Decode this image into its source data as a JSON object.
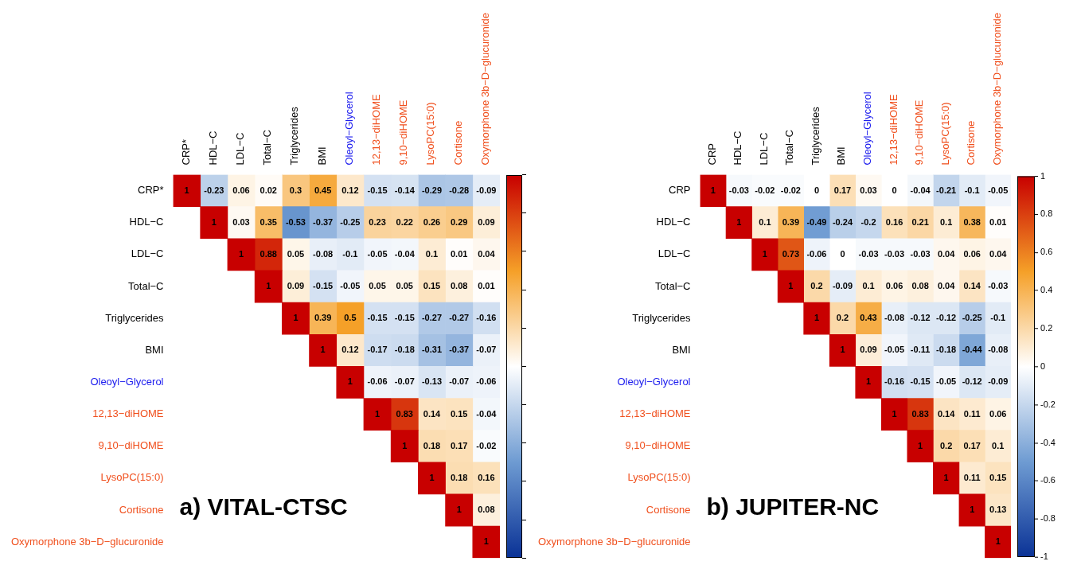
{
  "chart_data": [
    {
      "type": "heatmap",
      "title": "a) VITAL-CTSC",
      "categories": [
        "CRP*",
        "HDL−C",
        "LDL−C",
        "Total−C",
        "Triglycerides",
        "BMI",
        "Oleoyl−Glycerol",
        "12,13−diHOME",
        "9,10−diHOME",
        "LysoPC(15:0)",
        "Cortisone",
        "Oxymorphone 3b−D−glucuronide"
      ],
      "y_categories": [
        "CRP*",
        "HDL−C",
        "LDL−C",
        "Total−C",
        "Triglycerides",
        "BMI",
        "Oleoyl−Glycerol",
        "12,13−diHOME",
        "9,10−diHOME",
        "LysoPC(15:0)",
        "Cortisone",
        "Oxymorphone 3b−D−glucuronide"
      ],
      "cells": [
        [
          1,
          -0.23,
          0.06,
          0.02,
          0.3,
          0.45,
          0.12,
          -0.15,
          -0.14,
          -0.29,
          -0.28,
          -0.09
        ],
        [
          null,
          1,
          0.03,
          0.35,
          -0.53,
          -0.37,
          -0.25,
          0.23,
          0.22,
          0.26,
          0.29,
          0.09
        ],
        [
          null,
          null,
          1,
          0.88,
          0.05,
          -0.08,
          -0.1,
          -0.05,
          -0.04,
          0.1,
          0.01,
          0.04
        ],
        [
          null,
          null,
          null,
          1,
          0.09,
          -0.15,
          -0.05,
          0.05,
          0.05,
          0.15,
          0.08,
          0.01
        ],
        [
          null,
          null,
          null,
          null,
          1,
          0.39,
          0.5,
          -0.15,
          -0.15,
          -0.27,
          -0.27,
          -0.16
        ],
        [
          null,
          null,
          null,
          null,
          null,
          1,
          0.12,
          -0.17,
          -0.18,
          -0.31,
          -0.37,
          -0.07
        ],
        [
          null,
          null,
          null,
          null,
          null,
          null,
          1,
          -0.06,
          -0.07,
          -0.13,
          -0.07,
          -0.06
        ],
        [
          null,
          null,
          null,
          null,
          null,
          null,
          null,
          1,
          0.83,
          0.14,
          0.15,
          -0.04
        ],
        [
          null,
          null,
          null,
          null,
          null,
          null,
          null,
          null,
          1,
          0.18,
          0.17,
          -0.02
        ],
        [
          null,
          null,
          null,
          null,
          null,
          null,
          null,
          null,
          null,
          1,
          0.18,
          0.16
        ],
        [
          null,
          null,
          null,
          null,
          null,
          null,
          null,
          null,
          null,
          null,
          1,
          0.08
        ],
        [
          null,
          null,
          null,
          null,
          null,
          null,
          null,
          null,
          null,
          null,
          null,
          1
        ]
      ],
      "data_labels": true
    },
    {
      "type": "heatmap",
      "title": "b) JUPITER-NC",
      "categories": [
        "CRP",
        "HDL−C",
        "LDL−C",
        "Total−C",
        "Triglycerides",
        "BMI",
        "Oleoyl−Glycerol",
        "12,13−diHOME",
        "9,10−diHOME",
        "LysoPC(15:0)",
        "Cortisone",
        "Oxymorphone 3b−D−glucuronide"
      ],
      "y_categories": [
        "CRP",
        "HDL−C",
        "LDL−C",
        "Total−C",
        "Triglycerides",
        "BMI",
        "Oleoyl−Glycerol",
        "12,13−diHOME",
        "9,10−diHOME",
        "LysoPC(15:0)",
        "Cortisone",
        "Oxymorphone 3b−D−glucuronide"
      ],
      "cells": [
        [
          1,
          -0.03,
          -0.02,
          -0.02,
          0,
          0.17,
          0.03,
          0,
          -0.04,
          -0.21,
          -0.1,
          -0.05
        ],
        [
          null,
          1,
          0.1,
          0.39,
          -0.49,
          -0.24,
          -0.2,
          0.16,
          0.21,
          0.1,
          0.38,
          0.01
        ],
        [
          null,
          null,
          1,
          0.73,
          -0.06,
          0,
          -0.03,
          -0.03,
          -0.03,
          0.04,
          0.06,
          0.04
        ],
        [
          null,
          null,
          null,
          1,
          0.2,
          -0.09,
          0.1,
          0.06,
          0.08,
          0.04,
          0.14,
          -0.03
        ],
        [
          null,
          null,
          null,
          null,
          1,
          0.2,
          0.43,
          -0.08,
          -0.12,
          -0.12,
          -0.25,
          -0.1
        ],
        [
          null,
          null,
          null,
          null,
          null,
          1,
          0.09,
          -0.05,
          -0.11,
          -0.18,
          -0.44,
          -0.08
        ],
        [
          null,
          null,
          null,
          null,
          null,
          null,
          1,
          -0.16,
          -0.15,
          -0.05,
          -0.12,
          -0.09
        ],
        [
          null,
          null,
          null,
          null,
          null,
          null,
          null,
          1,
          0.83,
          0.14,
          0.11,
          0.06
        ],
        [
          null,
          null,
          null,
          null,
          null,
          null,
          null,
          null,
          1,
          0.2,
          0.17,
          0.1
        ],
        [
          null,
          null,
          null,
          null,
          null,
          null,
          null,
          null,
          null,
          1,
          0.11,
          0.15
        ],
        [
          null,
          null,
          null,
          null,
          null,
          null,
          null,
          null,
          null,
          null,
          1,
          0.13
        ],
        [
          null,
          null,
          null,
          null,
          null,
          null,
          null,
          null,
          null,
          null,
          null,
          1
        ]
      ],
      "data_labels": true,
      "clim": [
        -1,
        1
      ],
      "cticks": [
        -1,
        -0.8,
        -0.6,
        -0.4,
        -0.2,
        0,
        0.2,
        0.4,
        0.6,
        0.8,
        1
      ]
    }
  ]
}
